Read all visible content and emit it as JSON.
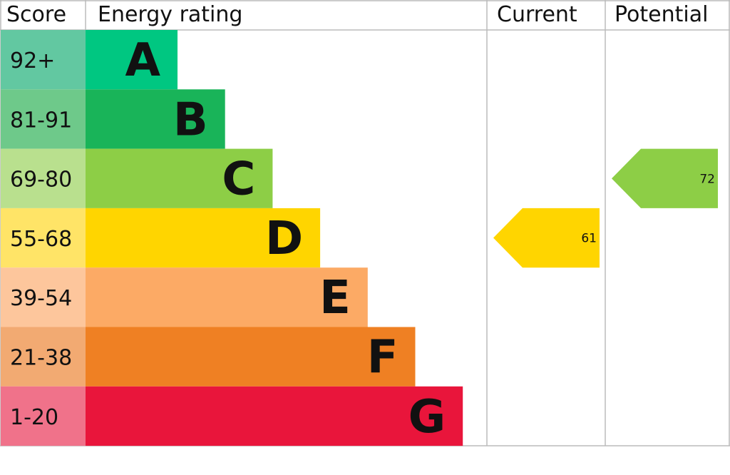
{
  "chart_data": {
    "type": "bar",
    "headers": {
      "score": "Score",
      "rating": "Energy rating",
      "current": "Current",
      "potential": "Potential"
    },
    "bands": [
      {
        "letter": "A",
        "range": "92+",
        "color": "#00c781",
        "score_color": "#62c8a1"
      },
      {
        "letter": "B",
        "range": "81-91",
        "color": "#19b459",
        "score_color": "#6ec98a"
      },
      {
        "letter": "C",
        "range": "69-80",
        "color": "#8dce46",
        "score_color": "#b9e08e"
      },
      {
        "letter": "D",
        "range": "55-68",
        "color": "#ffd500",
        "score_color": "#ffe467"
      },
      {
        "letter": "E",
        "range": "39-54",
        "color": "#fcaa65",
        "score_color": "#fdc69c"
      },
      {
        "letter": "F",
        "range": "21-38",
        "color": "#ef8023",
        "score_color": "#f2aa72"
      },
      {
        "letter": "G",
        "range": "1-20",
        "color": "#e9153b",
        "score_color": "#f0728a"
      }
    ],
    "current": {
      "value": "61",
      "band": "D"
    },
    "potential": {
      "value": "72",
      "band": "C"
    }
  }
}
